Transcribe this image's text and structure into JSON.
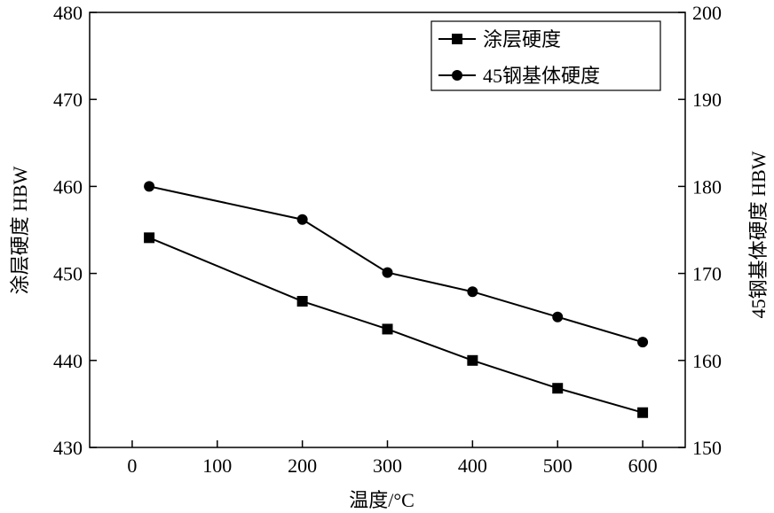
{
  "chart_data": {
    "type": "line",
    "title": "",
    "xlabel": "温度/°C",
    "ylabel_left": "涂层硬度  HBW",
    "ylabel_right": "45钢基体硬度  HBW",
    "xlim": [
      -50,
      650
    ],
    "ylim_left": [
      430,
      480
    ],
    "ylim_right": [
      150,
      200
    ],
    "x_ticks": [
      0,
      100,
      200,
      300,
      400,
      500,
      600
    ],
    "y_ticks_left": [
      430,
      440,
      450,
      460,
      470,
      480
    ],
    "y_ticks_right": [
      150,
      160,
      170,
      180,
      190,
      200
    ],
    "grid": false,
    "legend_position": "top-right",
    "series": [
      {
        "name": "涂层硬度",
        "axis": "left",
        "marker": "square",
        "x": [
          20,
          200,
          300,
          400,
          500,
          600
        ],
        "y": [
          454.1,
          446.8,
          443.6,
          440.0,
          436.8,
          434.0
        ]
      },
      {
        "name": "45钢基体硬度",
        "axis": "right",
        "marker": "circle",
        "x": [
          20,
          200,
          300,
          400,
          500,
          600
        ],
        "y": [
          180.0,
          176.2,
          170.1,
          167.9,
          165.0,
          162.1
        ]
      }
    ],
    "colors": {
      "line": "#000000"
    }
  }
}
